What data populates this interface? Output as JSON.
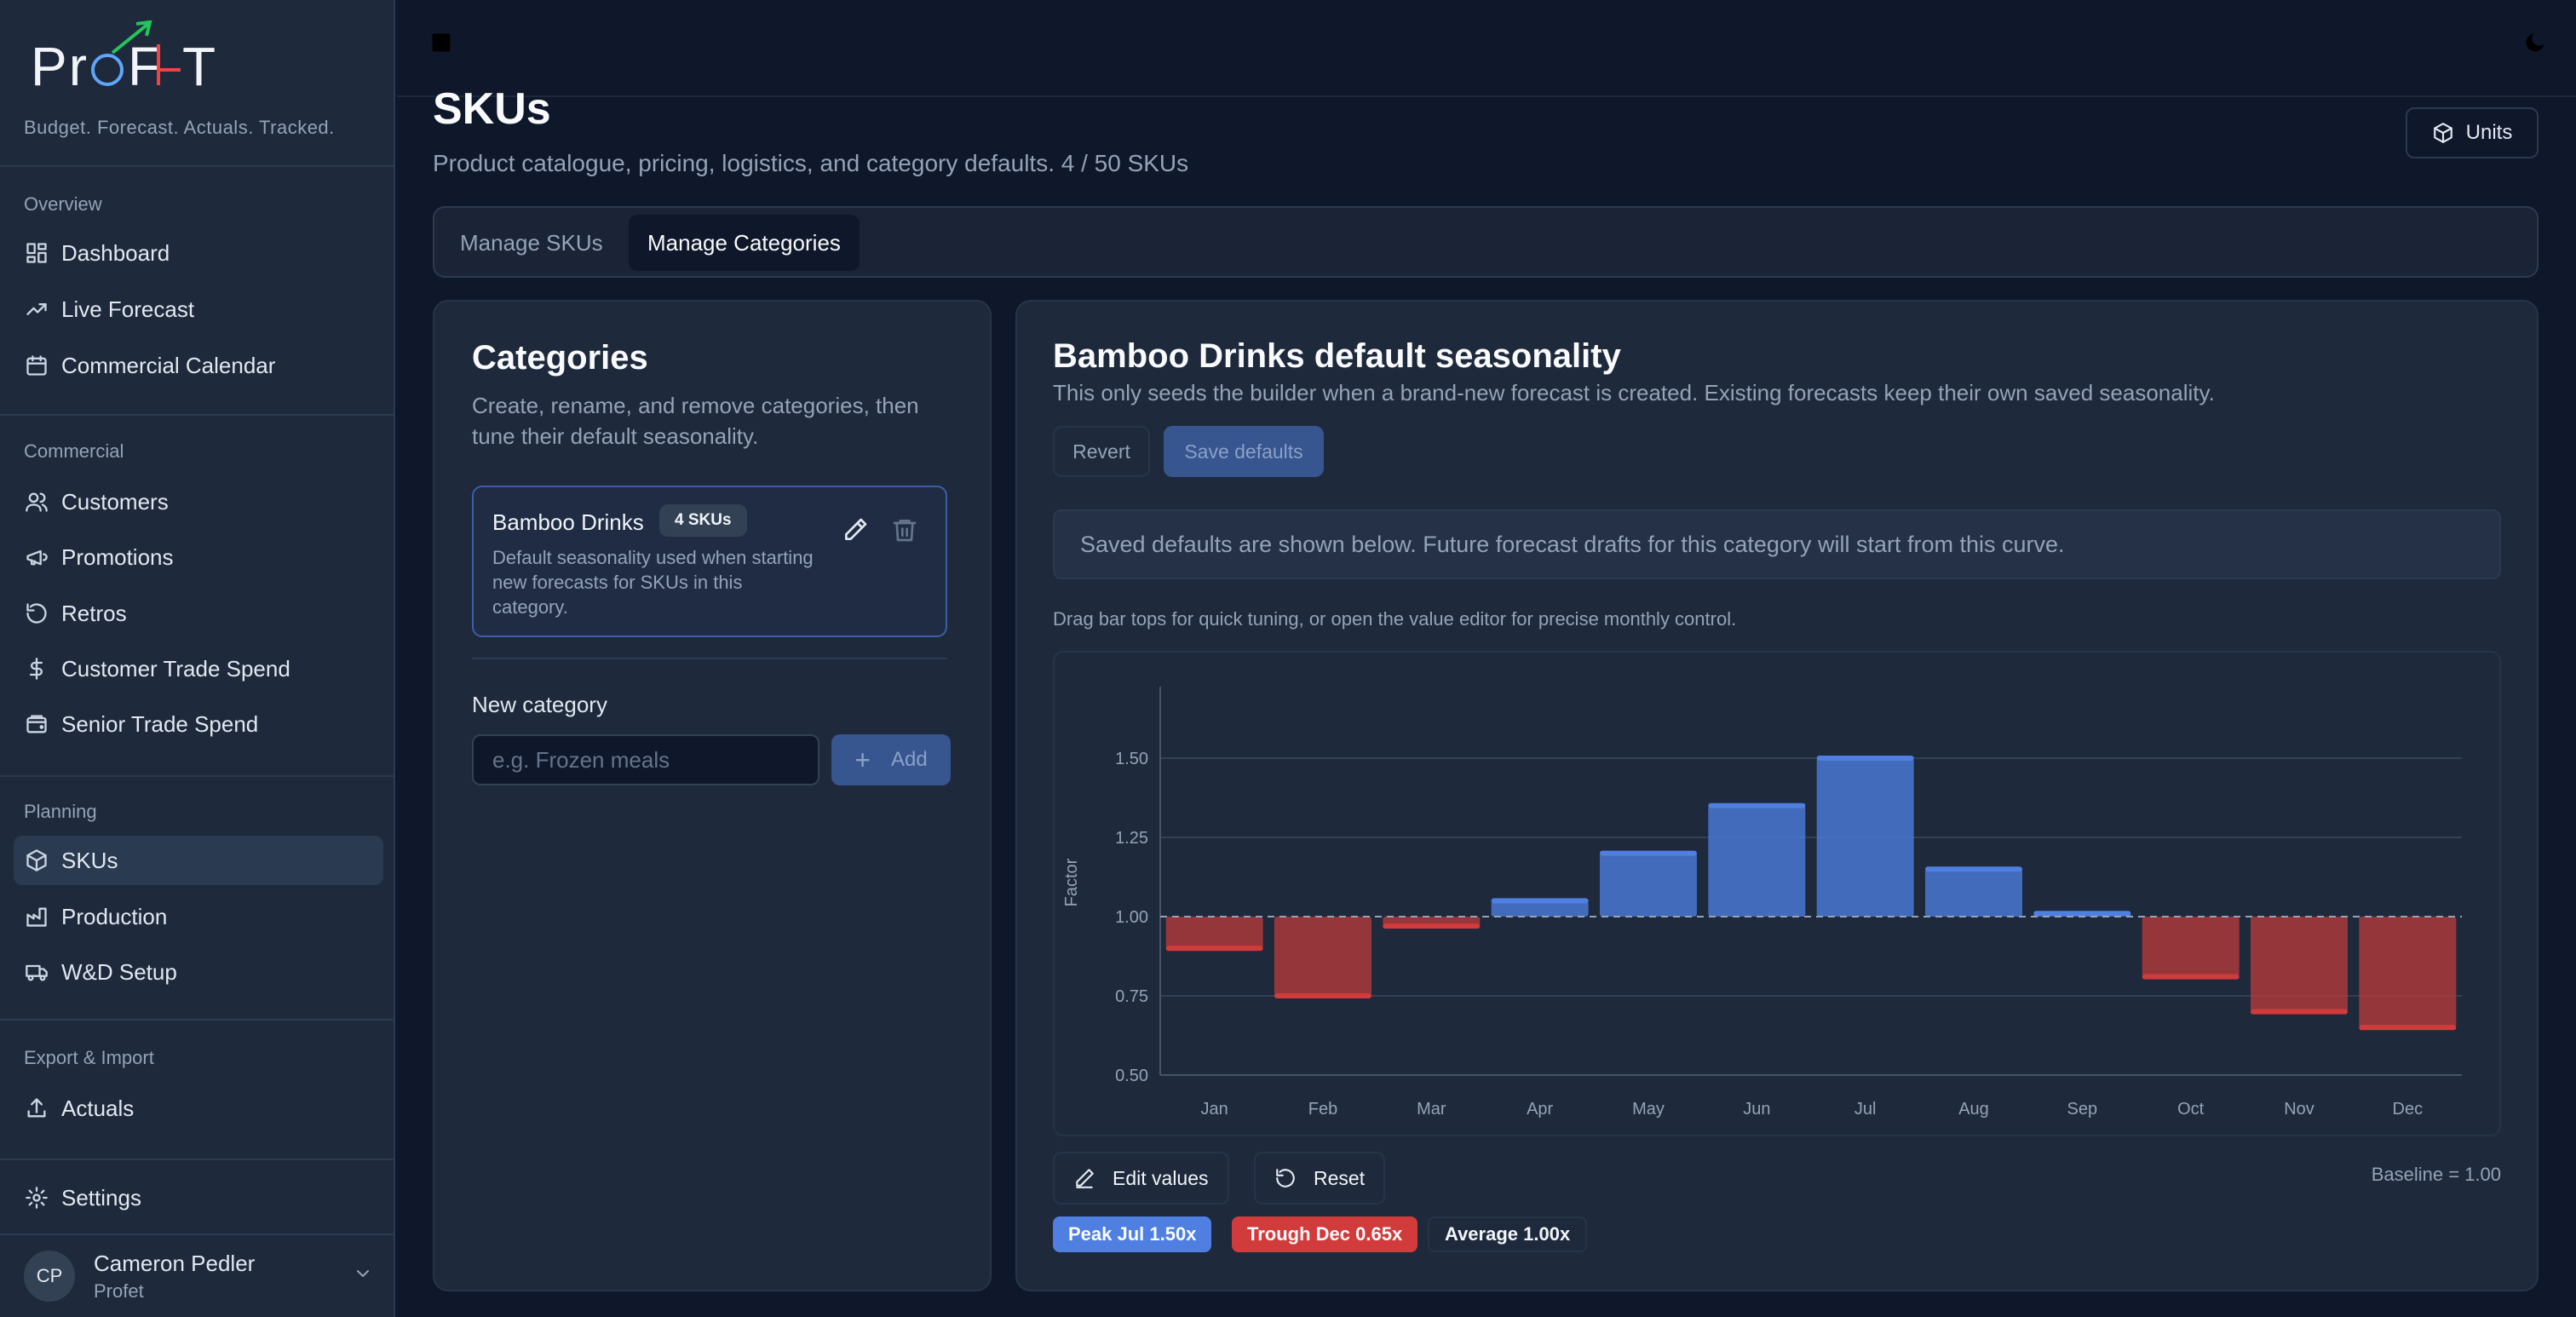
{
  "app": {
    "logo_text": "ProFeT",
    "tagline": "Budget. Forecast. Actuals. Tracked."
  },
  "sidebar": {
    "groups": [
      {
        "label": "Overview",
        "items": [
          {
            "label": "Dashboard",
            "icon": "layout-dashboard-icon"
          },
          {
            "label": "Live Forecast",
            "icon": "trending-up-icon"
          },
          {
            "label": "Commercial Calendar",
            "icon": "calendar-icon"
          }
        ]
      },
      {
        "label": "Commercial",
        "items": [
          {
            "label": "Customers",
            "icon": "users-icon"
          },
          {
            "label": "Promotions",
            "icon": "megaphone-icon"
          },
          {
            "label": "Retros",
            "icon": "rotate-ccw-icon"
          },
          {
            "label": "Customer Trade Spend",
            "icon": "dollar-icon"
          },
          {
            "label": "Senior Trade Spend",
            "icon": "wallet-icon"
          }
        ]
      },
      {
        "label": "Planning",
        "items": [
          {
            "label": "SKUs",
            "icon": "package-icon",
            "active": true
          },
          {
            "label": "Production",
            "icon": "factory-icon"
          },
          {
            "label": "W&D Setup",
            "icon": "truck-icon"
          }
        ]
      },
      {
        "label": "Export & Import",
        "items": [
          {
            "label": "Actuals",
            "icon": "upload-icon"
          }
        ]
      }
    ],
    "settings_label": "Settings",
    "user": {
      "initials": "CP",
      "name": "Cameron Pedler",
      "org": "Profet"
    }
  },
  "page": {
    "title": "SKUs",
    "subtitle": "Product catalogue, pricing, logistics, and category defaults.  4 / 50 SKUs",
    "units_label": "Units",
    "tabs": [
      {
        "label": "Manage SKUs",
        "active": false
      },
      {
        "label": "Manage Categories",
        "active": true
      }
    ]
  },
  "categories": {
    "title": "Categories",
    "subtitle": "Create, rename, and remove categories, then tune their default seasonality.",
    "items": [
      {
        "name": "Bamboo Drinks",
        "badge": "4 SKUs",
        "description": "Default seasonality used when starting new forecasts for SKUs in this category."
      }
    ],
    "new_label": "New category",
    "new_placeholder": "e.g. Frozen meals",
    "add_label": "Add"
  },
  "seasonality": {
    "title": "Bamboo Drinks default seasonality",
    "subtitle": "This only seeds the builder when a brand-new forecast is created. Existing forecasts keep their own saved seasonality.",
    "revert_label": "Revert",
    "save_label": "Save defaults",
    "info": "Saved defaults are shown below. Future forecast drafts for this category will start from this curve.",
    "hint": "Drag bar tops for quick tuning, or open the value editor for precise monthly control.",
    "edit_label": "Edit values",
    "reset_label": "Reset",
    "baseline_label": "Baseline = 1.00",
    "peak_label": "Peak Jul 1.50x",
    "trough_label": "Trough Dec 0.65x",
    "average_label": "Average 1.00x",
    "colors": {
      "above": "#4a7bd8",
      "below": "#b03a3a",
      "peak": "#4f7fe0",
      "trough": "#d23b3b"
    }
  },
  "chart_data": {
    "type": "bar",
    "categories": [
      "Jan",
      "Feb",
      "Mar",
      "Apr",
      "May",
      "Jun",
      "Jul",
      "Aug",
      "Sep",
      "Oct",
      "Nov",
      "Dec"
    ],
    "values": [
      0.9,
      0.75,
      0.97,
      1.05,
      1.2,
      1.35,
      1.5,
      1.15,
      1.01,
      0.81,
      0.7,
      0.65
    ],
    "baseline": 1.0,
    "ylabel": "Factor",
    "xlabel": "",
    "ylim": [
      0.5,
      1.6
    ],
    "yticks": [
      "0.50",
      "0.75",
      "1.00",
      "1.25",
      "1.50"
    ],
    "grid": true
  }
}
